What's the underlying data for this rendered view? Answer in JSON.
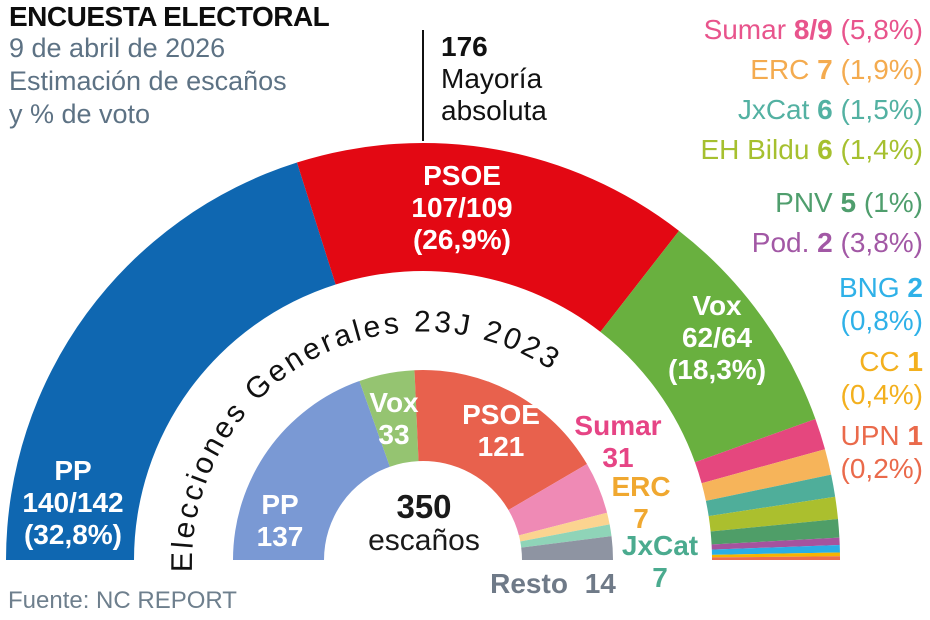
{
  "header": {
    "title": "ENCUESTA ELECTORAL",
    "subtitle_lines": [
      "9 de abril de 2026",
      "Estimación de escaños",
      "y % de voto"
    ]
  },
  "majority": {
    "seats": "176",
    "line1": "Mayoría",
    "line2": "absoluta"
  },
  "footer": {
    "source": "Fuente: NC REPORT"
  },
  "chart_data": [
    {
      "type": "half-donut",
      "title": "Estimación de escaños y % de voto — 9 de abril de 2026",
      "total_seats": 350,
      "majority_marker": 176,
      "series": [
        {
          "party": "PP",
          "seats": "140/142",
          "seats_value": 141,
          "pct_value": 32.8,
          "pct_label": "(32,8%)",
          "color": "#0f67b1"
        },
        {
          "party": "PSOE",
          "seats": "107/109",
          "seats_value": 108,
          "pct_value": 26.9,
          "pct_label": "(26,9%)",
          "color": "#e30813"
        },
        {
          "party": "Vox",
          "seats": "62/64",
          "seats_value": 63,
          "pct_value": 18.3,
          "pct_label": "(18,3%)",
          "color": "#69b03f"
        },
        {
          "party": "Sumar",
          "seats": "8/9",
          "seats_value": 8.5,
          "pct_value": 5.8,
          "pct_label": "(5,8%)",
          "color": "#e5477e"
        },
        {
          "party": "ERC",
          "seats": "7",
          "seats_value": 7,
          "pct_value": 1.9,
          "pct_label": "(1,9%)",
          "color": "#f6b45a"
        },
        {
          "party": "JxCat",
          "seats": "6",
          "seats_value": 6,
          "pct_value": 1.5,
          "pct_label": "(1,5%)",
          "color": "#4fae9a"
        },
        {
          "party": "EH Bildu",
          "seats": "6",
          "seats_value": 6,
          "pct_value": 1.4,
          "pct_label": "(1,4%)",
          "color": "#abbf2e"
        },
        {
          "party": "PNV",
          "seats": "5",
          "seats_value": 5,
          "pct_value": 1.0,
          "pct_label": "(1%)",
          "color": "#4f9e68"
        },
        {
          "party": "Pod.",
          "seats": "2",
          "seats_value": 2,
          "pct_value": 3.8,
          "pct_label": "(3,8%)",
          "color": "#a5539e"
        },
        {
          "party": "BNG",
          "seats": "2",
          "seats_value": 2,
          "pct_value": 0.8,
          "pct_label": "(0,8%)",
          "color": "#29aee6"
        },
        {
          "party": "CC",
          "seats": "1",
          "seats_value": 1,
          "pct_value": 0.4,
          "pct_label": "(0,4%)",
          "color": "#f6b400"
        },
        {
          "party": "UPN",
          "seats": "1",
          "seats_value": 1,
          "pct_value": 0.2,
          "pct_label": "(0,2%)",
          "color": "#ed6e4e"
        }
      ]
    },
    {
      "type": "half-donut",
      "title": "Elecciones Generales 23J 2023",
      "curved_label": "Elecciones Generales 23J 2023",
      "center_label": {
        "value": "350",
        "unit": "escaños"
      },
      "total_seats": 350,
      "series": [
        {
          "party": "PP",
          "seats": "137",
          "seats_value": 137,
          "color": "#7a99d4"
        },
        {
          "party": "Vox",
          "seats": "33",
          "seats_value": 33,
          "color": "#95c471"
        },
        {
          "party": "PSOE",
          "seats": "121",
          "seats_value": 121,
          "color": "#e8614d"
        },
        {
          "party": "Sumar",
          "seats": "31",
          "seats_value": 31,
          "color": "#ef8ab5"
        },
        {
          "party": "ERC",
          "seats": "7",
          "seats_value": 7,
          "color": "#fbd490"
        },
        {
          "party": "JxCat",
          "seats": "7",
          "seats_value": 7,
          "color": "#8fd4b8"
        },
        {
          "party": "Resto",
          "seats": "14",
          "seats_value": 14,
          "color": "#8e94a2"
        }
      ]
    }
  ],
  "legend": {
    "items": [
      {
        "name": "Sumar",
        "seats": "8/9",
        "pct_label": "(5,8%)",
        "color": "#e8548c",
        "wrap": false,
        "gap_before": false
      },
      {
        "name": "ERC",
        "seats": "7",
        "pct_label": "(1,9%)",
        "color": "#f4ab4f",
        "wrap": false,
        "gap_before": false
      },
      {
        "name": "JxCat",
        "seats": "6",
        "pct_label": "(1,5%)",
        "color": "#53b1a2",
        "wrap": false,
        "gap_before": false
      },
      {
        "name": "EH Bildu",
        "seats": "6",
        "pct_label": "(1,4%)",
        "color": "#a6c02f",
        "wrap": false,
        "gap_before": false
      },
      {
        "name": "PNV",
        "seats": "5",
        "pct_label": "(1%)",
        "color": "#4f9e6d",
        "wrap": false,
        "gap_before": true
      },
      {
        "name": "Pod.",
        "seats": "2",
        "pct_label": "(3,8%)",
        "color": "#a258a5",
        "wrap": false,
        "gap_before": false
      },
      {
        "name": "BNG",
        "seats": "2",
        "pct_label": "(0,8%)",
        "color": "#2fb1e8",
        "wrap": true,
        "gap_before": false
      },
      {
        "name": "CC",
        "seats": "1",
        "pct_label": "(0,4%)",
        "color": "#f3b01e",
        "wrap": true,
        "gap_before": false
      },
      {
        "name": "UPN",
        "seats": "1",
        "pct_label": "(0,2%)",
        "color": "#ea6a4b",
        "wrap": true,
        "gap_before": false
      }
    ]
  }
}
